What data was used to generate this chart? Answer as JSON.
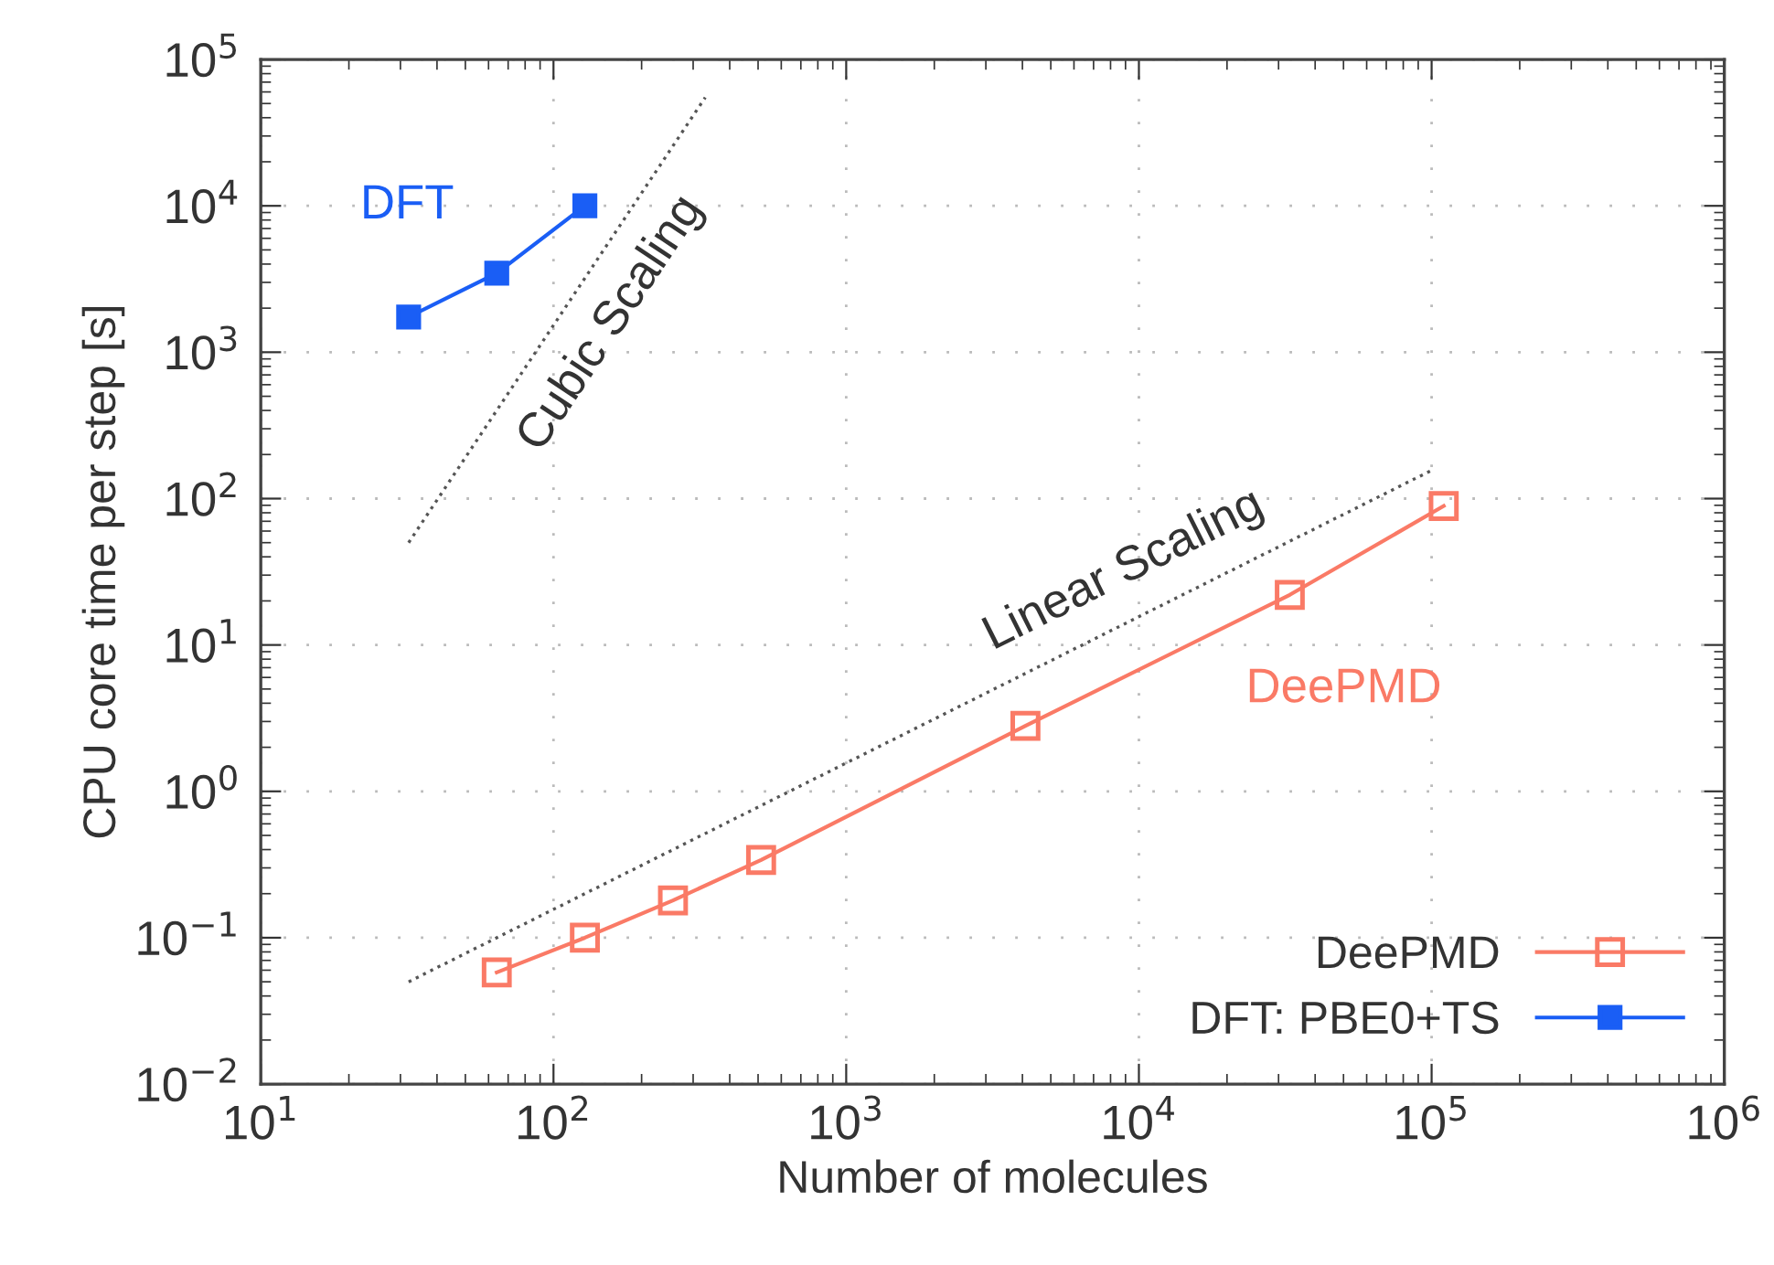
{
  "chart_data": {
    "type": "line",
    "xlabel": "Number of molecules",
    "ylabel": "CPU core time per step [s]",
    "log": "xy",
    "grid": true,
    "legend": "bottom right",
    "xlim": [
      10,
      1000000
    ],
    "ylim": [
      0.01,
      100000
    ],
    "xticks": [
      {
        "value": 10,
        "label": "10$^{1}$"
      },
      {
        "value": 100,
        "label": "10$^{2}$"
      },
      {
        "value": 1000,
        "label": "10$^{3}$"
      },
      {
        "value": 10000,
        "label": "10$^{4}$"
      },
      {
        "value": 100000,
        "label": "10$^{5}$"
      },
      {
        "value": 1000000,
        "label": "10$^{6}$"
      }
    ],
    "yticks": [
      {
        "value": 0.01,
        "label": "10$^{−2}$"
      },
      {
        "value": 0.1,
        "label": "10$^{−1}$"
      },
      {
        "value": 1,
        "label": "10$^{0}$"
      },
      {
        "value": 10,
        "label": "10$^{1}$"
      },
      {
        "value": 100,
        "label": "10$^{2}$"
      },
      {
        "value": 1000,
        "label": "10$^{3}$"
      },
      {
        "value": 10000,
        "label": "10$^{4}$"
      },
      {
        "value": 100000,
        "label": "10$^{5}$"
      }
    ],
    "series": [
      {
        "name": "DeePMD",
        "color": "#fa7a66",
        "marker": "square",
        "line_style": "solid",
        "x": [
          64,
          128,
          256,
          512,
          4096,
          32768,
          110000
        ],
        "values": [
          0.058,
          0.1,
          0.18,
          0.34,
          2.8,
          22,
          89
        ]
      },
      {
        "name": "DFT: PBE0+TS",
        "color": "#1a5ef5",
        "marker": "square",
        "line_style": "solid",
        "x": [
          32,
          64,
          128
        ],
        "values": [
          1740,
          3470,
          10000
        ]
      },
      {
        "name": "Linear Scaling",
        "color": "#555555",
        "marker": "none",
        "line_style": "dotted",
        "x": [
          32,
          100000
        ],
        "values": [
          0.05,
          156
        ]
      },
      {
        "name": "Cubic Scaling",
        "color": "#555555",
        "marker": "none",
        "line_style": "dotted",
        "x": [
          32,
          330
        ],
        "values": [
          50,
          55000
        ]
      }
    ],
    "annotations": [
      "DFT",
      "DeePMD"
    ]
  }
}
